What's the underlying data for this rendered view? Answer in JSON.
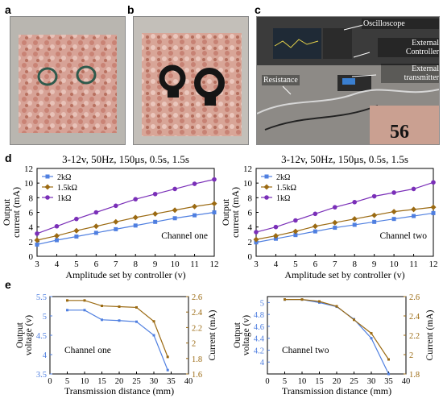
{
  "panels": {
    "a": "a",
    "b": "b",
    "c": "c",
    "d": "d",
    "e": "e"
  },
  "photo_c": {
    "labels": [
      "Oscilloscope",
      "External Controller",
      "External transmitter",
      "Resistance"
    ],
    "colors": {
      "screen": "#1f2a36",
      "device": "#2b2b2b",
      "cable": "#d7d7d7"
    }
  },
  "chart_data": [
    {
      "type": "line",
      "title": "3-12v, 50Hz, 150μs, 0.5s, 1.5s",
      "annotation": "Channel one",
      "xlabel": "Amplitude set by controller (v)",
      "ylabel_line1": "Output",
      "ylabel_line2": "current (mA)",
      "xlim": [
        3,
        12
      ],
      "ylim": [
        0,
        12
      ],
      "xticks": [
        3,
        4,
        5,
        6,
        7,
        8,
        9,
        10,
        11,
        12
      ],
      "yticks": [
        0,
        2,
        4,
        6,
        8,
        10,
        12
      ],
      "legend_position": "top-left",
      "x": [
        3,
        4,
        5,
        6,
        7,
        8,
        9,
        10,
        11,
        12
      ],
      "series": [
        {
          "name": "2kΩ",
          "color": "#4f7fe0",
          "marker": "square",
          "values": [
            1.6,
            2.2,
            2.7,
            3.2,
            3.7,
            4.2,
            4.7,
            5.2,
            5.6,
            6.0
          ]
        },
        {
          "name": "1.5kΩ",
          "color": "#9b6a12",
          "marker": "diamond",
          "values": [
            2.2,
            2.8,
            3.5,
            4.1,
            4.7,
            5.3,
            5.8,
            6.3,
            6.8,
            7.2
          ]
        },
        {
          "name": "1kΩ",
          "color": "#7a2fb8",
          "marker": "circle",
          "values": [
            3.1,
            4.1,
            5.1,
            6.0,
            6.9,
            7.8,
            8.5,
            9.2,
            9.9,
            10.5
          ]
        }
      ]
    },
    {
      "type": "line",
      "title": "3-12v, 50Hz, 150μs, 0.5s, 1.5s",
      "annotation": "Channel two",
      "xlabel": "Amplitude set by controller (v)",
      "ylabel_line1": "Output",
      "ylabel_line2": "current (mA)",
      "xlim": [
        3,
        12
      ],
      "ylim": [
        0,
        12
      ],
      "xticks": [
        3,
        4,
        5,
        6,
        7,
        8,
        9,
        10,
        11,
        12
      ],
      "yticks": [
        0,
        2,
        4,
        6,
        8,
        10,
        12
      ],
      "legend_position": "top-left",
      "x": [
        3,
        4,
        5,
        6,
        7,
        8,
        9,
        10,
        11,
        12
      ],
      "series": [
        {
          "name": "2kΩ",
          "color": "#4f7fe0",
          "marker": "square",
          "values": [
            1.9,
            2.4,
            2.9,
            3.4,
            3.9,
            4.3,
            4.7,
            5.1,
            5.5,
            5.9
          ]
        },
        {
          "name": "1.5kΩ",
          "color": "#9b6a12",
          "marker": "diamond",
          "values": [
            2.3,
            2.8,
            3.4,
            4.1,
            4.6,
            5.1,
            5.6,
            6.1,
            6.4,
            6.7
          ]
        },
        {
          "name": "1kΩ",
          "color": "#7a2fb8",
          "marker": "circle",
          "values": [
            3.3,
            4.0,
            4.9,
            5.8,
            6.7,
            7.4,
            8.2,
            8.7,
            9.2,
            10.1
          ]
        }
      ]
    },
    {
      "type": "line",
      "annotation": "Channel one",
      "xlabel": "Transmission distance (mm)",
      "ylabel_left_line1": "Output",
      "ylabel_left_line2": "voltage (v)",
      "ylabel_right": "Current (mA)",
      "xlim": [
        0,
        40
      ],
      "ylim_left": [
        3.5,
        5.5
      ],
      "ylim_right": [
        1.6,
        2.6
      ],
      "xticks": [
        0,
        5,
        10,
        15,
        20,
        25,
        30,
        35,
        40
      ],
      "yticks_left": [
        "3.5",
        "4",
        "4.5",
        "5",
        "5.5"
      ],
      "yticks_right": [
        "1.6",
        "1.8",
        "2",
        "2.2",
        "2.4",
        "2.6"
      ],
      "left_color": "#4f7fe0",
      "right_color": "#9b6a12",
      "x": [
        5,
        10,
        15,
        20,
        25,
        30,
        34
      ],
      "series": [
        {
          "axis": "left",
          "color": "#4f7fe0",
          "values": [
            5.15,
            5.15,
            4.9,
            4.88,
            4.85,
            4.5,
            3.6
          ]
        },
        {
          "axis": "right",
          "color": "#9b6a12",
          "values": [
            2.55,
            2.55,
            2.48,
            2.47,
            2.46,
            2.28,
            1.82
          ]
        }
      ]
    },
    {
      "type": "line",
      "annotation": "Channel two",
      "xlabel": "Transmission distance (mm)",
      "ylabel_left_line1": "Output",
      "ylabel_left_line2": "voltage (v)",
      "ylabel_right": "Current (mA)",
      "xlim": [
        0,
        40
      ],
      "ylim_left": [
        3.8,
        5.1
      ],
      "ylim_right": [
        1.8,
        2.6
      ],
      "xticks": [
        0,
        5,
        10,
        15,
        20,
        25,
        30,
        35,
        40
      ],
      "yticks_left": [
        "4",
        "4.2",
        "4.4",
        "4.6",
        "4.8",
        "5"
      ],
      "yticks_right": [
        "1.8",
        "2",
        "2.2",
        "2.4",
        "2.6"
      ],
      "left_color": "#4f7fe0",
      "right_color": "#9b6a12",
      "x": [
        5,
        10,
        15,
        20,
        25,
        30,
        35
      ],
      "series": [
        {
          "axis": "left",
          "color": "#4f7fe0",
          "values": [
            5.05,
            5.05,
            5.0,
            4.93,
            4.72,
            4.4,
            3.8
          ]
        },
        {
          "axis": "right",
          "color": "#9b6a12",
          "values": [
            2.57,
            2.57,
            2.55,
            2.5,
            2.36,
            2.22,
            1.95
          ]
        }
      ]
    }
  ]
}
